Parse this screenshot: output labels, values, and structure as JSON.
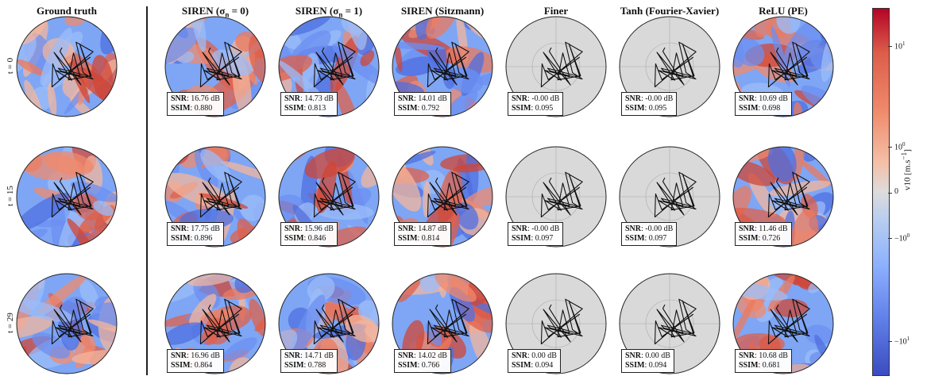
{
  "columns": [
    {
      "key": "gt",
      "title": "Ground truth",
      "type": "field"
    },
    {
      "key": "siren0",
      "title": "SIREN (σ",
      "title_sub": "n",
      "title_tail": " = 0)",
      "type": "field"
    },
    {
      "key": "siren1",
      "title": "SIREN (σ",
      "title_sub": "n",
      "title_tail": " = 1)",
      "type": "field"
    },
    {
      "key": "sitz",
      "title": "SIREN (Sitzmann)",
      "type": "field"
    },
    {
      "key": "finer",
      "title": "Finer",
      "type": "flat"
    },
    {
      "key": "tanh",
      "title": "Tanh (Fourier-Xavier)",
      "type": "flat"
    },
    {
      "key": "relu",
      "title": "ReLU (PE)",
      "type": "field"
    }
  ],
  "rows": [
    {
      "label": "t = 0"
    },
    {
      "label": "t = 15"
    },
    {
      "label": "t = 29"
    }
  ],
  "metric_labels": {
    "snr": "SNR",
    "ssim": "SSIM"
  },
  "metrics": [
    [
      null,
      {
        "snr": "16.76 dB",
        "ssim": "0.880"
      },
      {
        "snr": "14.73 dB",
        "ssim": "0.813"
      },
      {
        "snr": "14.01 dB",
        "ssim": "0.792"
      },
      {
        "snr": "-0.00 dB",
        "ssim": "0.095"
      },
      {
        "snr": "-0.00 dB",
        "ssim": "0.095"
      },
      {
        "snr": "10.69 dB",
        "ssim": "0.698"
      }
    ],
    [
      null,
      {
        "snr": "17.75 dB",
        "ssim": "0.896"
      },
      {
        "snr": "15.96 dB",
        "ssim": "0.846"
      },
      {
        "snr": "14.87 dB",
        "ssim": "0.814"
      },
      {
        "snr": "-0.00 dB",
        "ssim": "0.097"
      },
      {
        "snr": "-0.00 dB",
        "ssim": "0.097"
      },
      {
        "snr": "11.46 dB",
        "ssim": "0.726"
      }
    ],
    [
      null,
      {
        "snr": "16.96 dB",
        "ssim": "0.864"
      },
      {
        "snr": "14.71 dB",
        "ssim": "0.788"
      },
      {
        "snr": "14.02 dB",
        "ssim": "0.766"
      },
      {
        "snr": "0.00 dB",
        "ssim": "0.094"
      },
      {
        "snr": "0.00 dB",
        "ssim": "0.094"
      },
      {
        "snr": "10.68 dB",
        "ssim": "0.681"
      }
    ]
  ],
  "colorbar": {
    "title": "v10 [m.s",
    "title_sup": "−1",
    "title_tail": "]",
    "ticks": [
      {
        "base": "10",
        "exp": "1"
      },
      {
        "base": "10",
        "exp": "0"
      },
      {
        "base": "0",
        "exp": ""
      },
      {
        "base": "−10",
        "exp": "0"
      },
      {
        "base": "−10",
        "exp": "1"
      }
    ],
    "colors": {
      "high": "#b40426",
      "mid": "#dddcdc",
      "low": "#3b4cc0",
      "flat_fill": "#d9d9d9"
    }
  }
}
